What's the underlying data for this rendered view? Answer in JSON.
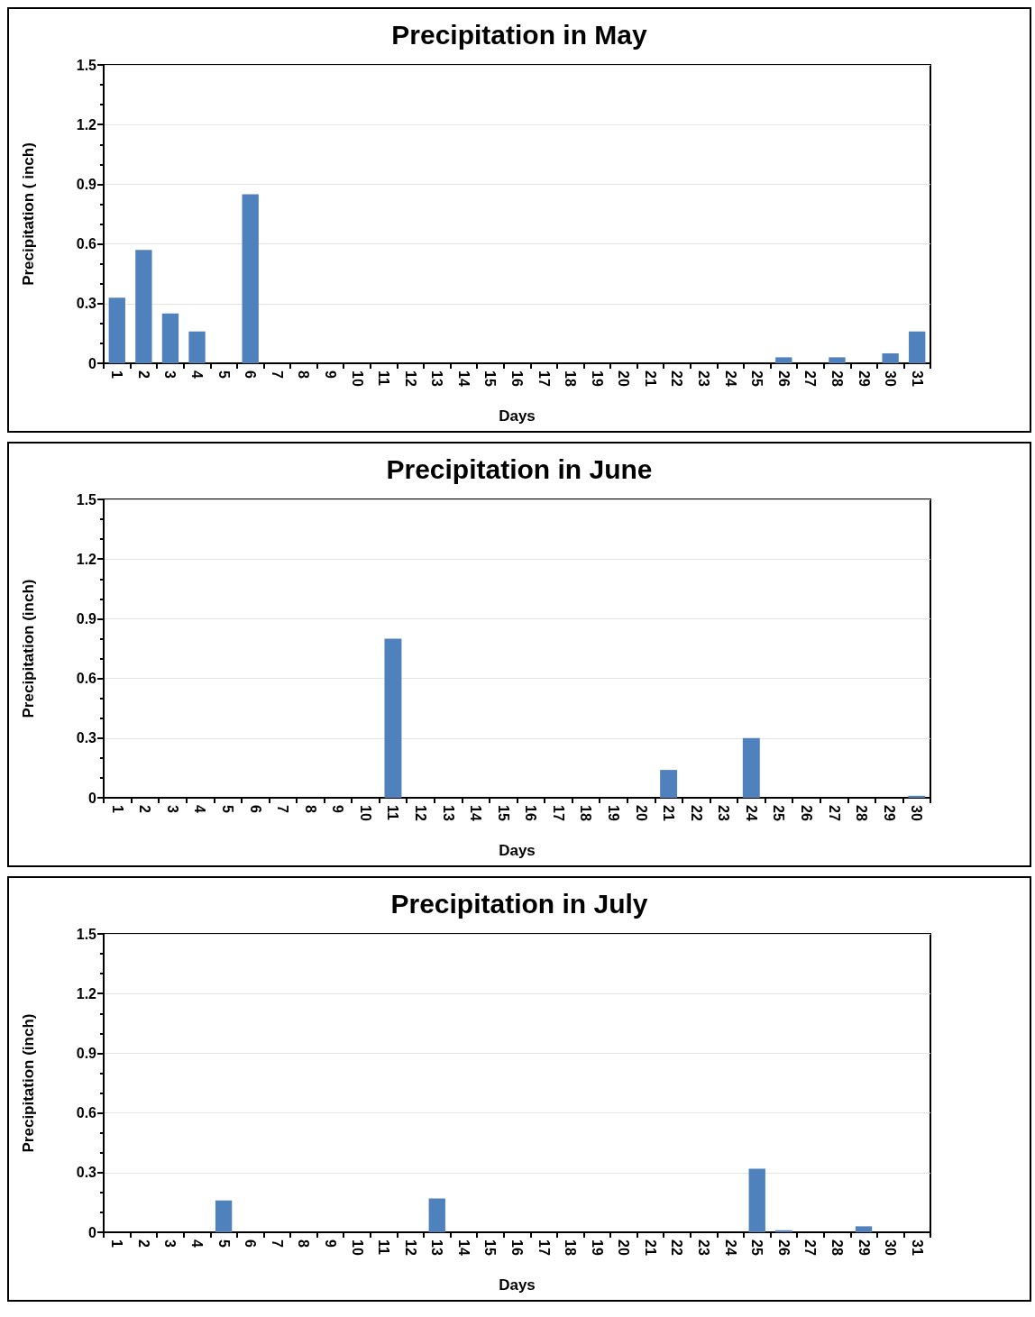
{
  "chart_data": [
    {
      "type": "bar",
      "title": "Precipitation in May",
      "xlabel": "Days",
      "ylabel": "Precipitation ( inch)",
      "categories": [
        "1",
        "2",
        "3",
        "4",
        "5",
        "6",
        "7",
        "8",
        "9",
        "10",
        "11",
        "12",
        "13",
        "14",
        "15",
        "16",
        "17",
        "18",
        "19",
        "20",
        "21",
        "22",
        "23",
        "24",
        "25",
        "26",
        "27",
        "28",
        "29",
        "30",
        "31"
      ],
      "values": [
        0.33,
        0.57,
        0.25,
        0.16,
        0,
        0.85,
        0,
        0,
        0,
        0,
        0,
        0,
        0,
        0,
        0,
        0,
        0,
        0,
        0,
        0,
        0,
        0,
        0,
        0,
        0,
        0.03,
        0,
        0.03,
        0,
        0.05,
        0.16
      ],
      "color": "#4f81bd",
      "ylim": [
        0,
        1.5
      ],
      "yticks": [
        0,
        0.3,
        0.6,
        0.9,
        1.2,
        1.5
      ],
      "grid": "y"
    },
    {
      "type": "bar",
      "title": "Precipitation in June",
      "xlabel": "Days",
      "ylabel": "Precipitation (inch)",
      "categories": [
        "1",
        "2",
        "3",
        "4",
        "5",
        "6",
        "7",
        "8",
        "9",
        "10",
        "11",
        "12",
        "13",
        "14",
        "15",
        "16",
        "17",
        "18",
        "19",
        "20",
        "21",
        "22",
        "23",
        "24",
        "25",
        "26",
        "27",
        "28",
        "29",
        "30"
      ],
      "values": [
        0,
        0,
        0,
        0,
        0,
        0,
        0,
        0,
        0,
        0,
        0.8,
        0,
        0,
        0,
        0,
        0,
        0,
        0,
        0,
        0,
        0.14,
        0,
        0,
        0.3,
        0,
        0,
        0,
        0,
        0,
        0.01
      ],
      "color": "#4f81bd",
      "ylim": [
        0,
        1.5
      ],
      "yticks": [
        0,
        0.3,
        0.6,
        0.9,
        1.2,
        1.5
      ],
      "grid": "y"
    },
    {
      "type": "bar",
      "title": "Precipitation in July",
      "xlabel": "Days",
      "ylabel": "Precipitation (inch)",
      "categories": [
        "1",
        "2",
        "3",
        "4",
        "5",
        "6",
        "7",
        "8",
        "9",
        "10",
        "11",
        "12",
        "13",
        "14",
        "15",
        "16",
        "17",
        "18",
        "19",
        "20",
        "21",
        "22",
        "23",
        "24",
        "25",
        "26",
        "27",
        "28",
        "29",
        "30",
        "31"
      ],
      "values": [
        0,
        0,
        0,
        0,
        0.16,
        0,
        0,
        0,
        0,
        0,
        0,
        0,
        0.17,
        0,
        0,
        0,
        0,
        0,
        0,
        0,
        0,
        0,
        0,
        0,
        0.32,
        0.01,
        0,
        0,
        0.03,
        0,
        0
      ],
      "color": "#4f81bd",
      "ylim": [
        0,
        1.5
      ],
      "yticks": [
        0,
        0.3,
        0.6,
        0.9,
        1.2,
        1.5
      ],
      "grid": "y"
    }
  ]
}
